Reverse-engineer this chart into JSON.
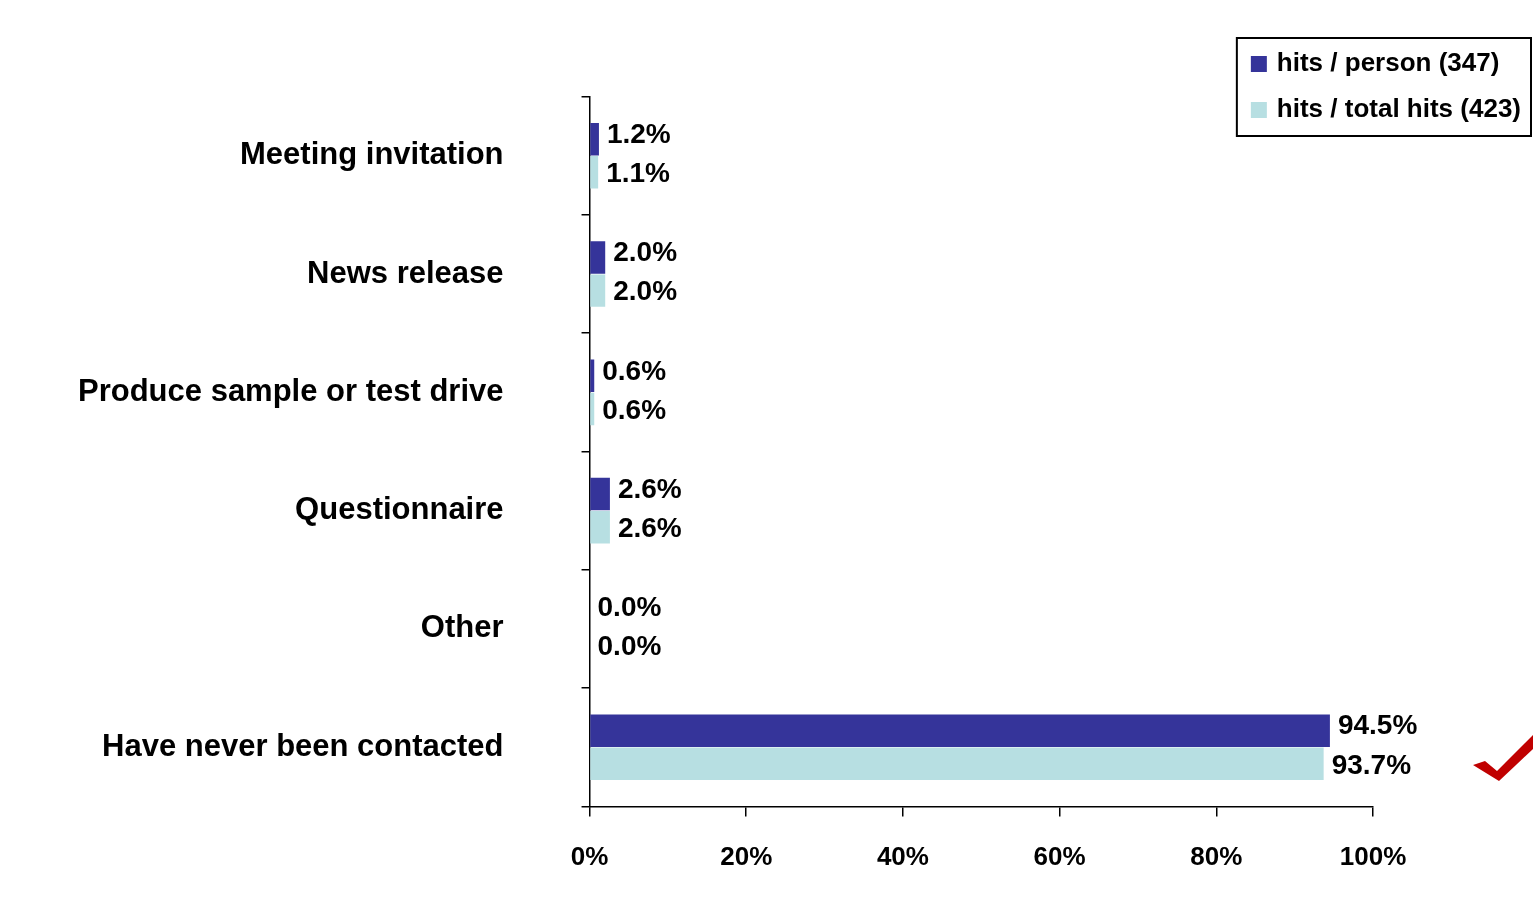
{
  "chart_data": {
    "type": "bar",
    "orientation": "horizontal",
    "categories": [
      "Meeting invitation",
      "News release",
      "Produce sample or test drive",
      "Questionnaire",
      "Other",
      "Have never been contacted"
    ],
    "series": [
      {
        "name": "hits / person (347)",
        "color": "#35349a",
        "values": [
          1.2,
          2.0,
          0.6,
          2.6,
          0.0,
          94.5
        ],
        "value_labels": [
          "1.2%",
          "2.0%",
          "0.6%",
          "2.6%",
          "0.0%",
          "94.5%"
        ]
      },
      {
        "name": "hits / total hits (423)",
        "color": "#b7dfe2",
        "values": [
          1.1,
          2.0,
          0.6,
          2.6,
          0.0,
          93.7
        ],
        "value_labels": [
          "1.1%",
          "2.0%",
          "0.6%",
          "2.6%",
          "0.0%",
          "93.7%"
        ]
      }
    ],
    "xlim": [
      0,
      100
    ],
    "xticks": [
      {
        "value": 0,
        "label": "0%"
      },
      {
        "value": 20,
        "label": "20%"
      },
      {
        "value": 40,
        "label": "40%"
      },
      {
        "value": 60,
        "label": "60%"
      },
      {
        "value": 80,
        "label": "80%"
      },
      {
        "value": 100,
        "label": "100%"
      }
    ],
    "legend": "top right",
    "grid": false
  }
}
